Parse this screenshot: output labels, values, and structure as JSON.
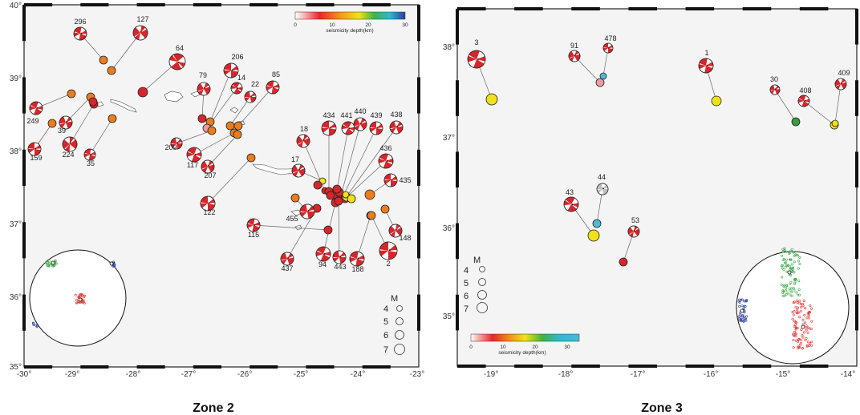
{
  "zone2": {
    "caption": "Zone 2",
    "lon_ticks": [
      "-30°",
      "-29°",
      "-28°",
      "-27°",
      "-26°",
      "-25°",
      "-24°",
      "-23°"
    ],
    "lat_ticks": [
      "40°",
      "39°",
      "38°",
      "37°",
      "36°",
      "35°"
    ],
    "colorbar": {
      "ticks": [
        "0",
        "10",
        "20",
        "30"
      ],
      "label": "seismicity depth(km)"
    },
    "magnitude_legend": {
      "title": "M",
      "values": [
        "4",
        "5",
        "6",
        "7"
      ]
    },
    "event_ids": [
      "296",
      "127",
      "64",
      "206",
      "79",
      "14",
      "22",
      "85",
      "249",
      "39",
      "159",
      "224",
      "35",
      "209",
      "117",
      "207",
      "122",
      "18",
      "434",
      "441",
      "440",
      "439",
      "438",
      "436",
      "17",
      "435",
      "455",
      "115",
      "437",
      "94",
      "443",
      "188",
      "148",
      "2"
    ]
  },
  "zone3": {
    "caption": "Zone 3",
    "lon_ticks": [
      "-19°",
      "-18°",
      "-17°",
      "-16°",
      "-15°",
      "-14°"
    ],
    "lat_ticks": [
      "38°",
      "37°",
      "36°",
      "35°"
    ],
    "colorbar": {
      "ticks": [
        "0",
        "10",
        "20",
        "30"
      ],
      "label": "seismicity depth(km)"
    },
    "magnitude_legend": {
      "title": "M",
      "values": [
        "4",
        "5",
        "6",
        "7"
      ]
    },
    "event_ids": [
      "3",
      "91",
      "478",
      "1",
      "30",
      "408",
      "409",
      "43",
      "44",
      "53"
    ]
  }
}
